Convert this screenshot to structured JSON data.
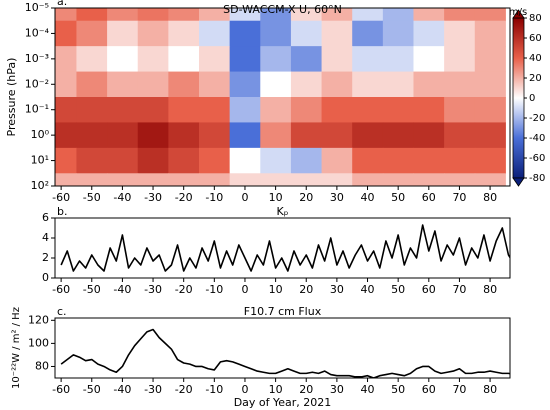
{
  "chart_data": [
    {
      "type": "heatmap",
      "panel_label": "a.",
      "title": "SD-WACCM-X U, 60°N",
      "ylabel": "Pressure (hPa)",
      "xlim": [
        -62,
        86.5
      ],
      "xticks": [
        -60,
        -50,
        -40,
        -30,
        -20,
        -10,
        0,
        10,
        20,
        30,
        40,
        50,
        60,
        70,
        80
      ],
      "ylim": [
        1e-05,
        100
      ],
      "ylog": true,
      "yinverted": true,
      "yticks": [
        {
          "value": 1e-05,
          "label": "10⁻⁵"
        },
        {
          "value": 0.0001,
          "label": "10⁻⁴"
        },
        {
          "value": 0.001,
          "label": "10⁻³"
        },
        {
          "value": 0.01,
          "label": "10⁻²"
        },
        {
          "value": 0.1,
          "label": "10⁻¹"
        },
        {
          "value": 1,
          "label": "10⁰"
        },
        {
          "value": 10,
          "label": "10¹"
        },
        {
          "value": 100,
          "label": "10²"
        }
      ],
      "x": [
        -60,
        -50,
        -40,
        -30,
        -20,
        -10,
        0,
        10,
        20,
        30,
        40,
        50,
        60,
        70,
        80
      ],
      "y": [
        1e-05,
        0.0001,
        0.001,
        0.01,
        0.1,
        1,
        10,
        100
      ],
      "z": [
        [
          30,
          40,
          30,
          35,
          30,
          20,
          -10,
          -30,
          10,
          20,
          -10,
          -20,
          20,
          30,
          30
        ],
        [
          40,
          30,
          10,
          20,
          10,
          -10,
          -40,
          -30,
          -10,
          10,
          -30,
          -20,
          -10,
          10,
          20
        ],
        [
          20,
          10,
          0,
          10,
          0,
          10,
          -40,
          -20,
          -30,
          10,
          -10,
          -10,
          0,
          10,
          20
        ],
        [
          20,
          30,
          20,
          20,
          30,
          20,
          -30,
          0,
          10,
          20,
          10,
          10,
          20,
          20,
          20
        ],
        [
          50,
          50,
          50,
          50,
          40,
          40,
          -20,
          20,
          30,
          40,
          40,
          40,
          40,
          30,
          30
        ],
        [
          60,
          60,
          60,
          70,
          60,
          50,
          -40,
          30,
          50,
          50,
          60,
          60,
          60,
          50,
          50
        ],
        [
          40,
          50,
          50,
          60,
          50,
          40,
          0,
          -10,
          -20,
          20,
          40,
          40,
          40,
          40,
          40
        ],
        [
          20,
          20,
          20,
          20,
          20,
          20,
          10,
          10,
          10,
          10,
          20,
          20,
          20,
          20,
          20
        ]
      ],
      "colormap": [
        "#0a1f7a",
        "#4a6fd8",
        "#ffffff",
        "#e8604a",
        "#8b0000"
      ],
      "colorbar": {
        "label": "m/s",
        "lim": [
          -80,
          80
        ],
        "ticks": [
          80,
          60,
          40,
          20,
          0,
          -20,
          -40,
          -60,
          -80
        ]
      }
    },
    {
      "type": "line",
      "panel_label": "b.",
      "title": "Kₚ",
      "xlim": [
        -62,
        86.5
      ],
      "xticks": [
        -60,
        -50,
        -40,
        -30,
        -20,
        -10,
        0,
        10,
        20,
        30,
        40,
        50,
        60,
        70,
        80
      ],
      "ylim": [
        0,
        6
      ],
      "yticks": [
        0,
        2,
        4,
        6
      ],
      "x": [
        -60,
        -58,
        -56,
        -54,
        -52,
        -50,
        -48,
        -46,
        -44,
        -42,
        -40,
        -38,
        -36,
        -34,
        -32,
        -30,
        -28,
        -26,
        -24,
        -22,
        -20,
        -18,
        -16,
        -14,
        -12,
        -10,
        -8,
        -6,
        -4,
        -2,
        0,
        2,
        4,
        6,
        8,
        10,
        12,
        14,
        16,
        18,
        20,
        22,
        24,
        26,
        28,
        30,
        32,
        34,
        36,
        38,
        40,
        42,
        44,
        46,
        48,
        50,
        52,
        54,
        56,
        58,
        60,
        62,
        64,
        66,
        68,
        70,
        72,
        74,
        76,
        78,
        80,
        82,
        84,
        86,
        88
      ],
      "series": [
        {
          "color": "#000000",
          "values": [
            1.3,
            2.7,
            0.7,
            1.7,
            1.0,
            2.3,
            1.3,
            0.7,
            3.0,
            1.7,
            4.3,
            1.0,
            2.0,
            1.3,
            3.0,
            1.7,
            2.3,
            0.7,
            1.3,
            3.3,
            0.7,
            2.0,
            1.0,
            3.0,
            1.7,
            3.7,
            1.0,
            2.7,
            1.3,
            3.3,
            2.0,
            0.7,
            2.3,
            1.3,
            3.7,
            1.0,
            2.0,
            0.7,
            2.7,
            1.3,
            2.3,
            1.0,
            3.3,
            1.7,
            4.0,
            1.3,
            2.7,
            1.0,
            2.3,
            3.3,
            1.7,
            2.7,
            1.0,
            3.7,
            2.0,
            4.3,
            1.3,
            3.0,
            2.0,
            5.3,
            2.7,
            4.7,
            1.7,
            3.3,
            2.3,
            4.0,
            1.3,
            3.0,
            2.0,
            4.3,
            1.7,
            3.7,
            5.0,
            2.3,
            1.3
          ]
        }
      ]
    },
    {
      "type": "line",
      "panel_label": "c.",
      "title": "F10.7 cm Flux",
      "ylabel": "10⁻²²W / m² / Hz",
      "xlabel": "Day of Year, 2021",
      "xlim": [
        -62,
        86.5
      ],
      "xticks": [
        -60,
        -50,
        -40,
        -30,
        -20,
        -10,
        0,
        10,
        20,
        30,
        40,
        50,
        60,
        70,
        80
      ],
      "ylim": [
        70,
        122
      ],
      "yticks": [
        80,
        100,
        120
      ],
      "x": [
        -60,
        -58,
        -56,
        -54,
        -52,
        -50,
        -48,
        -46,
        -44,
        -42,
        -40,
        -38,
        -36,
        -34,
        -32,
        -30,
        -28,
        -26,
        -24,
        -22,
        -20,
        -18,
        -16,
        -14,
        -12,
        -10,
        -8,
        -6,
        -4,
        -2,
        0,
        2,
        4,
        6,
        8,
        10,
        12,
        14,
        16,
        18,
        20,
        22,
        24,
        26,
        28,
        30,
        32,
        34,
        36,
        38,
        40,
        42,
        44,
        46,
        48,
        50,
        52,
        54,
        56,
        58,
        60,
        62,
        64,
        66,
        68,
        70,
        72,
        74,
        76,
        78,
        80,
        82,
        84,
        86,
        88
      ],
      "series": [
        {
          "color": "#000000",
          "values": [
            82,
            86,
            90,
            88,
            85,
            86,
            82,
            80,
            77,
            75,
            80,
            90,
            98,
            104,
            110,
            112,
            105,
            100,
            95,
            86,
            83,
            82,
            80,
            80,
            78,
            77,
            84,
            85,
            84,
            82,
            80,
            78,
            76,
            75,
            74,
            74,
            76,
            78,
            76,
            74,
            74,
            75,
            74,
            76,
            73,
            72,
            72,
            72,
            71,
            71,
            72,
            70,
            72,
            73,
            74,
            73,
            72,
            74,
            78,
            80,
            80,
            76,
            74,
            75,
            76,
            78,
            74,
            74,
            75,
            75,
            76,
            75,
            74,
            74,
            73
          ]
        }
      ]
    }
  ]
}
